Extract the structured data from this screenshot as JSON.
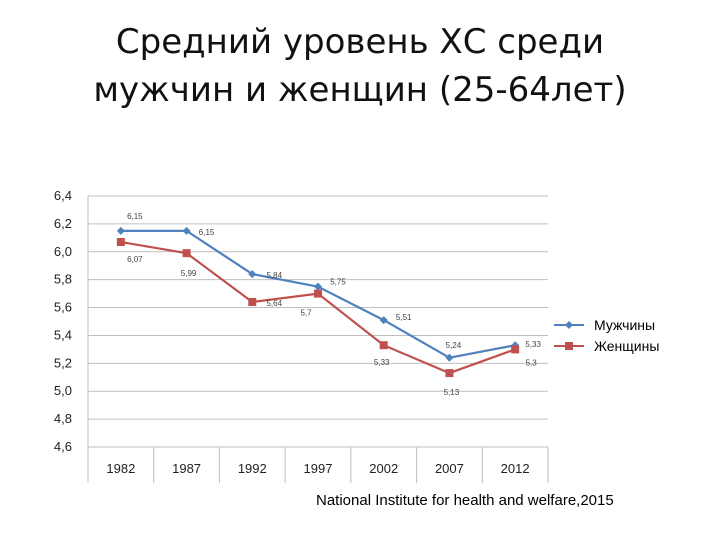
{
  "slide": {
    "title_line1": "Средний уровень ХС среди",
    "title_line2": "мужчин и женщин (25-64лет)",
    "source": "National Institute for health and welfare,2015"
  },
  "chart_data": {
    "type": "line",
    "title": "",
    "xlabel": "",
    "ylabel": "",
    "categories": [
      "1982",
      "1987",
      "1992",
      "1997",
      "2002",
      "2007",
      "2012"
    ],
    "ylim": [
      4.6,
      6.4
    ],
    "yticks": [
      "6,4",
      "6,2",
      "6,0",
      "5,8",
      "5,6",
      "5,4",
      "5,2",
      "5,0",
      "4,8",
      "4,6"
    ],
    "grid": true,
    "legend_position": "right",
    "series": [
      {
        "name": "Мужчины",
        "values": [
          6.15,
          6.15,
          5.84,
          5.75,
          5.51,
          5.24,
          5.33
        ],
        "labels": [
          "6,15",
          "6,15",
          "5,84",
          "5,75",
          "5,51",
          "5,24",
          "5,33"
        ],
        "color": "#4f81bd",
        "marker": "diamond"
      },
      {
        "name": "Женщины",
        "values": [
          6.07,
          5.99,
          5.64,
          5.7,
          5.33,
          5.13,
          5.3
        ],
        "labels": [
          "6,07",
          "5,99",
          "5,64",
          "5,7",
          "5,33",
          "5,13",
          "5,3"
        ],
        "color": "#c0504d",
        "marker": "square"
      }
    ]
  }
}
